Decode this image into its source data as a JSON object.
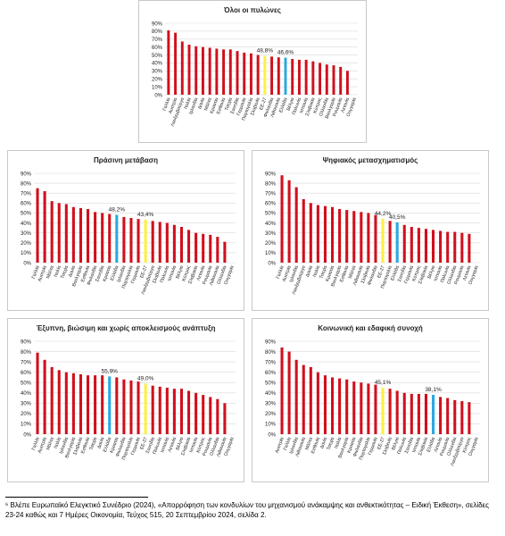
{
  "footnote": "⁶ Βλέπε Ευρωπαϊκό Ελεγκτικό Συνέδριο (2024), «Απορρόφηση των κονδυλίων του μηχανισμού ανάκαμψης και ανθεκτικότητας – Ειδική Έκθεση», σελίδες 23-24 καθώς και 7 Ημέρες Οικονομία, Τεύχος 515, 20 Σεπτεμβρίου 2024, σελίδα 2.",
  "colors": {
    "default": "#d0101c",
    "eu": "#ffee44",
    "greece": "#29a9e0",
    "grid": "#d9d9d9",
    "text": "#222222",
    "frame": "#c8c8c8"
  },
  "chart_data": [
    {
      "type": "bar",
      "title": "Όλοι οι πυλώνες",
      "ylim": [
        0,
        90
      ],
      "yticks": [
        "0%",
        "10%",
        "20%",
        "30%",
        "40%",
        "50%",
        "60%",
        "70%",
        "80%",
        "90%"
      ],
      "grid": true,
      "categories": [
        "Γαλλία",
        "Αυστρία",
        "Λουξεμβούργο",
        "Ιταλία",
        "Ιρλανδία",
        "Δανία",
        "Μάλτα",
        "Κροατία",
        "Εσθονία",
        "Τσεχία",
        "Σουηδία",
        "Γερμανία",
        "Πορτογαλία",
        "Σλοβενία",
        "ΕΕ-27",
        "Φινλανδία",
        "Λιθουανία",
        "Ελλάδα",
        "Βέλγιο",
        "Πολωνία",
        "Ισπανία",
        "Σλοβακία",
        "Κύπρος",
        "Ολλανδία",
        "Βουλγαρία",
        "Ρουμανία",
        "Λετονία",
        "Ουγγαρία"
      ],
      "values": [
        81,
        78,
        67,
        63,
        61,
        60,
        59,
        58,
        57,
        57,
        55,
        53,
        52,
        50,
        48.8,
        48,
        47,
        46.6,
        45,
        44,
        44,
        42,
        40,
        38,
        37,
        35,
        30,
        0
      ],
      "highlight": {
        "ΕΕ-27": "eu",
        "Ελλάδα": "greece"
      },
      "data_labels": [
        {
          "category": "ΕΕ-27",
          "text": "48,8%"
        },
        {
          "category": "Ελλάδα",
          "text": "46,6%"
        }
      ]
    },
    {
      "type": "bar",
      "title": "Πράσινη μετάβαση",
      "ylim": [
        0,
        90
      ],
      "yticks": [
        "0%",
        "10%",
        "20%",
        "30%",
        "40%",
        "50%",
        "60%",
        "70%",
        "80%",
        "90%"
      ],
      "grid": true,
      "categories": [
        "Γαλλία",
        "Αυστρία",
        "Μάλτα",
        "Ιταλία",
        "Τσεχία",
        "Δανία",
        "Βουλγαρία",
        "Εσθονία",
        "Φινλανδία",
        "Σουηδία",
        "Κροατία",
        "Ελλάδα",
        "Ιρλανδία",
        "Πορτογαλία",
        "Γερμανία",
        "ΕΕ-27",
        "Λουξεμβούργο",
        "Σλοβενία",
        "Πολωνία",
        "Ισπανία",
        "Βέλγιο",
        "Κύπρος",
        "Σλοβακία",
        "Λετονία",
        "Ρουμανία",
        "Λιθουανία",
        "Ολλανδία",
        "Ουγγαρία"
      ],
      "values": [
        75,
        72,
        62,
        60,
        59,
        56,
        55,
        54,
        51,
        50,
        49,
        48.2,
        46,
        45,
        44,
        43.4,
        42,
        41,
        40,
        38,
        36,
        33,
        30,
        29,
        28,
        26,
        21,
        0
      ],
      "highlight": {
        "ΕΕ-27": "eu",
        "Ελλάδα": "greece"
      },
      "data_labels": [
        {
          "category": "Ελλάδα",
          "text": "48,2%"
        },
        {
          "category": "ΕΕ-27",
          "text": "43,4%"
        }
      ]
    },
    {
      "type": "bar",
      "title": "Ψηφιακός μετασχηματισμός",
      "ylim": [
        0,
        90
      ],
      "yticks": [
        "0%",
        "10%",
        "20%",
        "30%",
        "40%",
        "50%",
        "60%",
        "70%",
        "80%",
        "90%"
      ],
      "grid": true,
      "categories": [
        "Γαλλία",
        "Αυστρία",
        "Ιρλανδία",
        "Λουξεμβούργο",
        "Δανία",
        "Ιταλία",
        "Τσεχία",
        "Κροατία",
        "Βουλγαρία",
        "Εσθονία",
        "Μάλτα",
        "Λιθουανία",
        "Σλοβενία",
        "Φινλανδία",
        "ΕΕ-27",
        "Πορτογαλία",
        "Ελλάδα",
        "Σουηδία",
        "Γερμανία",
        "Κύπρος",
        "Σλοβακία",
        "Βέλγιο",
        "Ισπανία",
        "Πολωνία",
        "Ολλανδία",
        "Ρουμανία",
        "Λετονία",
        "Ουγγαρία"
      ],
      "values": [
        88,
        83,
        76,
        64,
        60,
        58,
        57,
        56,
        54,
        53,
        52,
        51,
        50,
        48,
        44.2,
        42,
        40.5,
        38,
        36,
        35,
        34,
        33,
        32,
        31,
        31,
        30,
        29,
        0
      ],
      "highlight": {
        "ΕΕ-27": "eu",
        "Ελλάδα": "greece"
      },
      "data_labels": [
        {
          "category": "ΕΕ-27",
          "text": "44,2%"
        },
        {
          "category": "Ελλάδα",
          "text": "40,5%"
        }
      ]
    },
    {
      "type": "bar",
      "title": "Έξυπνη, βιώσιμη και χωρίς αποκλεισμούς ανάπτυξη",
      "ylim": [
        0,
        90
      ],
      "yticks": [
        "0%",
        "10%",
        "20%",
        "30%",
        "40%",
        "50%",
        "60%",
        "70%",
        "80%",
        "90%"
      ],
      "grid": true,
      "categories": [
        "Γαλλία",
        "Αυστρία",
        "Μάλτα",
        "Ιταλία",
        "Ιρλανδία",
        "Βουλγαρία",
        "Σλοβενία",
        "Εσθονία",
        "Τσεχία",
        "Δανία",
        "Ελλάδα",
        "Κροατία",
        "Φινλανδία",
        "Πορτογαλία",
        "Γερμανία",
        "ΕΕ-27",
        "Σουηδία",
        "Πολωνία",
        "Ισπανία",
        "Λετονία",
        "Βέλγιο",
        "Σλοβακία",
        "Ισπανία",
        "Κύπρος",
        "Ρουμανία",
        "Ολλανδία",
        "Λιθουανία",
        "Ουγγαρία"
      ],
      "values": [
        79,
        72,
        65,
        62,
        60,
        59,
        58,
        57,
        57,
        57,
        55.9,
        55,
        53,
        52,
        51,
        49,
        47,
        46,
        45,
        44,
        44,
        42,
        40,
        38,
        36,
        34,
        30,
        0
      ],
      "highlight": {
        "ΕΕ-27": "eu",
        "Ελλάδα": "greece"
      },
      "data_labels": [
        {
          "category": "Ελλάδα",
          "text": "55,9%"
        },
        {
          "category": "ΕΕ-27",
          "text": "49,0%"
        }
      ]
    },
    {
      "type": "bar",
      "title": "Κοινωνική και εδαφική συνοχή",
      "ylim": [
        0,
        90
      ],
      "yticks": [
        "0%",
        "10%",
        "20%",
        "30%",
        "40%",
        "50%",
        "60%",
        "70%",
        "80%",
        "90%"
      ],
      "grid": true,
      "categories": [
        "Αυστρία",
        "Γαλλία",
        "Ιρλανδία",
        "Λιθουανία",
        "Μάλτα",
        "Εσθονία",
        "Δανία",
        "Τσεχία",
        "Ιταλία",
        "Βουλγαρία",
        "Κροατία",
        "Φινλανδία",
        "Πορτογαλία",
        "Γερμανία",
        "ΕΕ-27",
        "Σλοβενία",
        "Βέλγιο",
        "Πολωνία",
        "Σουηδία",
        "Ισπανία",
        "Σλοβακία",
        "Ελλάδα",
        "Λετονία",
        "Ρουμανία",
        "Ολλανδία",
        "Λουξεμβούργο",
        "Κύπρος",
        "Ουγγαρία"
      ],
      "values": [
        84,
        80,
        72,
        67,
        65,
        60,
        57,
        55,
        54,
        53,
        51,
        50,
        49,
        48,
        45.1,
        44,
        42,
        40,
        39,
        39,
        39,
        38.1,
        36,
        35,
        33,
        32,
        31,
        0
      ],
      "highlight": {
        "ΕΕ-27": "eu",
        "Ελλάδα": "greece"
      },
      "data_labels": [
        {
          "category": "ΕΕ-27",
          "text": "45,1%"
        },
        {
          "category": "Ελλάδα",
          "text": "38,1%"
        }
      ]
    }
  ]
}
